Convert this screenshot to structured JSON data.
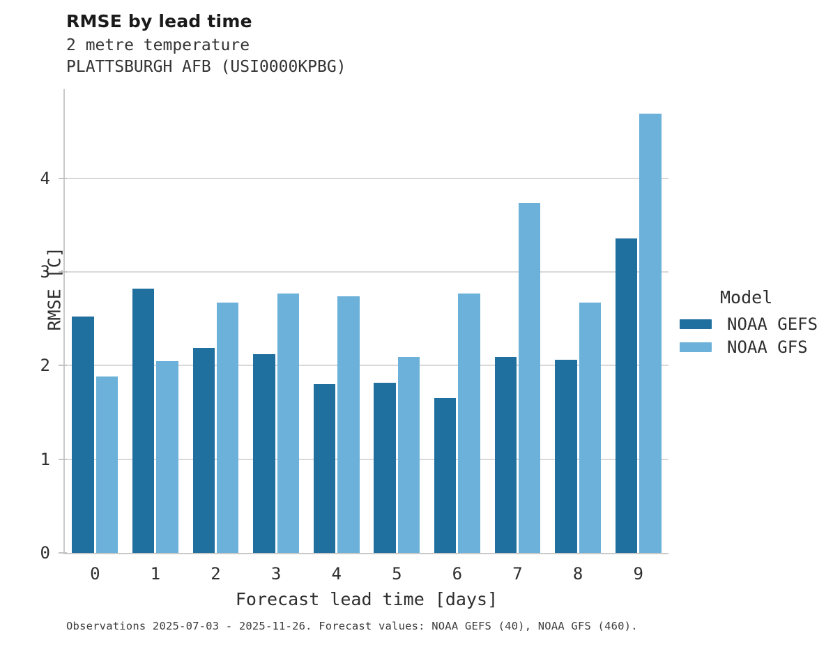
{
  "chart_data": {
    "type": "bar",
    "title": "RMSE by lead time",
    "subtitle_lines": [
      "2 metre temperature",
      "PLATTSBURGH AFB (USI0000KPBG)"
    ],
    "categories": [
      "0",
      "1",
      "2",
      "3",
      "4",
      "5",
      "6",
      "7",
      "8",
      "9"
    ],
    "series": [
      {
        "name": "NOAA GEFS",
        "color": "#1f6f9f",
        "values": [
          2.52,
          2.82,
          2.19,
          2.12,
          1.8,
          1.82,
          1.65,
          2.09,
          2.06,
          3.36
        ]
      },
      {
        "name": "NOAA GFS",
        "color": "#6cb1d9",
        "values": [
          1.88,
          2.05,
          2.67,
          2.77,
          2.74,
          2.09,
          2.77,
          3.74,
          2.67,
          4.69
        ]
      }
    ],
    "xlabel": "Forecast lead time [days]",
    "ylabel": "RMSE [C]",
    "ylim": [
      0,
      4.95
    ],
    "yticks": [
      0,
      1,
      2,
      3,
      4
    ],
    "grid": "horizontal",
    "legend_title": "Model",
    "legend_position": "right",
    "footnote": "Observations 2025-07-03 - 2025-11-26. Forecast values: NOAA GEFS (40), NOAA GFS (460).",
    "colors": {
      "axis_line": "#c9c9c9",
      "gridline": "#d9d9d9",
      "title_text": "#1a1a1a",
      "body_text": "#2e2e2e"
    }
  }
}
